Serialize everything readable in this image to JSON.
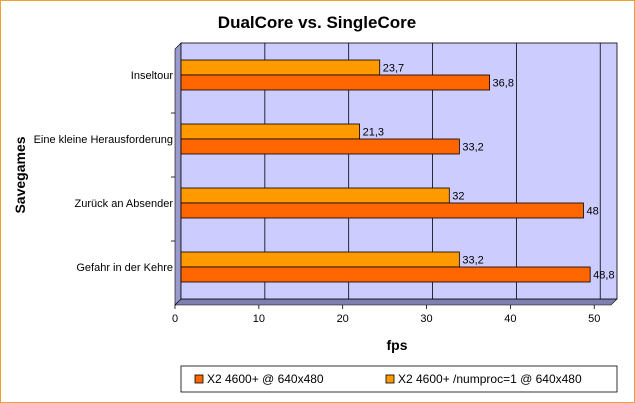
{
  "chart_data": {
    "type": "bar",
    "orientation": "horizontal",
    "title": "DualCore vs. SingleCore",
    "xlabel": "fps",
    "ylabel": "Savegames",
    "xlim": [
      0,
      52
    ],
    "xticks": [
      0,
      10,
      20,
      30,
      40,
      50
    ],
    "grid": true,
    "legend_position": "bottom",
    "plot_background": "#ccccff",
    "categories": [
      "Inseltour",
      "Eine kleine Herausforderung",
      "Zurück an Absender",
      "Gefahr in der Kehre"
    ],
    "series": [
      {
        "name": "X2 4600+ /numproc=1 @ 640x480",
        "color": "#ff9900",
        "values": [
          23.7,
          21.3,
          32,
          33.2
        ],
        "labels": [
          "23,7",
          "21,3",
          "32",
          "33,2"
        ]
      },
      {
        "name": "X2 4600+ @ 640x480",
        "color": "#ff6600",
        "values": [
          36.8,
          33.2,
          48,
          48.8
        ],
        "labels": [
          "36,8",
          "33,2",
          "48",
          "48,8"
        ]
      }
    ],
    "legend_order": [
      1,
      0
    ]
  }
}
